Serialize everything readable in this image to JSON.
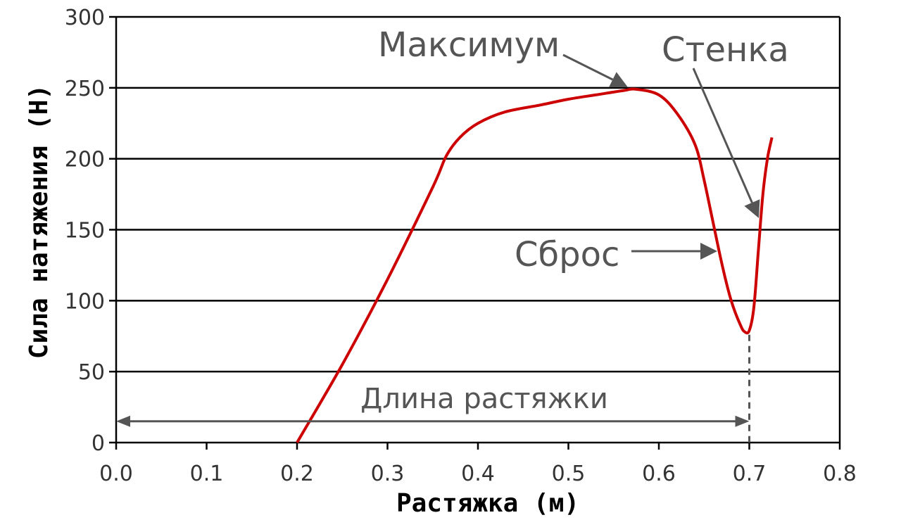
{
  "chart_data": {
    "type": "line",
    "xlabel": "Растяжка (м)",
    "ylabel": "Сила натяжения (Н)",
    "xlim": [
      0,
      0.8
    ],
    "ylim": [
      0,
      300
    ],
    "x_ticks": [
      "0.0",
      "0.1",
      "0.2",
      "0.3",
      "0.4",
      "0.5",
      "0.6",
      "0.7",
      "0.8"
    ],
    "y_ticks": [
      "0",
      "50",
      "100",
      "150",
      "200",
      "250",
      "300"
    ],
    "grid": "horizontal",
    "line_color": "#cc0000",
    "series": [
      {
        "x": [
          0.2,
          0.25,
          0.3,
          0.35,
          0.365,
          0.38,
          0.4,
          0.43,
          0.47,
          0.5,
          0.53,
          0.56,
          0.575,
          0.6,
          0.62,
          0.64,
          0.65,
          0.66,
          0.67,
          0.68,
          0.69,
          0.695,
          0.7,
          0.705,
          0.71,
          0.715,
          0.72,
          0.725
        ],
        "y": [
          0,
          55,
          115,
          180,
          202,
          215,
          225,
          233,
          238,
          242,
          245,
          248,
          249,
          245,
          232,
          210,
          185,
          155,
          125,
          100,
          83,
          78,
          79,
          95,
          135,
          175,
          200,
          215
        ]
      }
    ],
    "annotations": [
      {
        "text": "Максимум",
        "x": 0.575,
        "y": 249
      },
      {
        "text": "Стенка",
        "x": 0.71,
        "y": 160
      },
      {
        "text": "Сброс",
        "x": 0.66,
        "y": 135
      },
      {
        "text": "Длина растяжки",
        "x_from": 0,
        "x_to": 0.7,
        "y": 15
      }
    ]
  }
}
